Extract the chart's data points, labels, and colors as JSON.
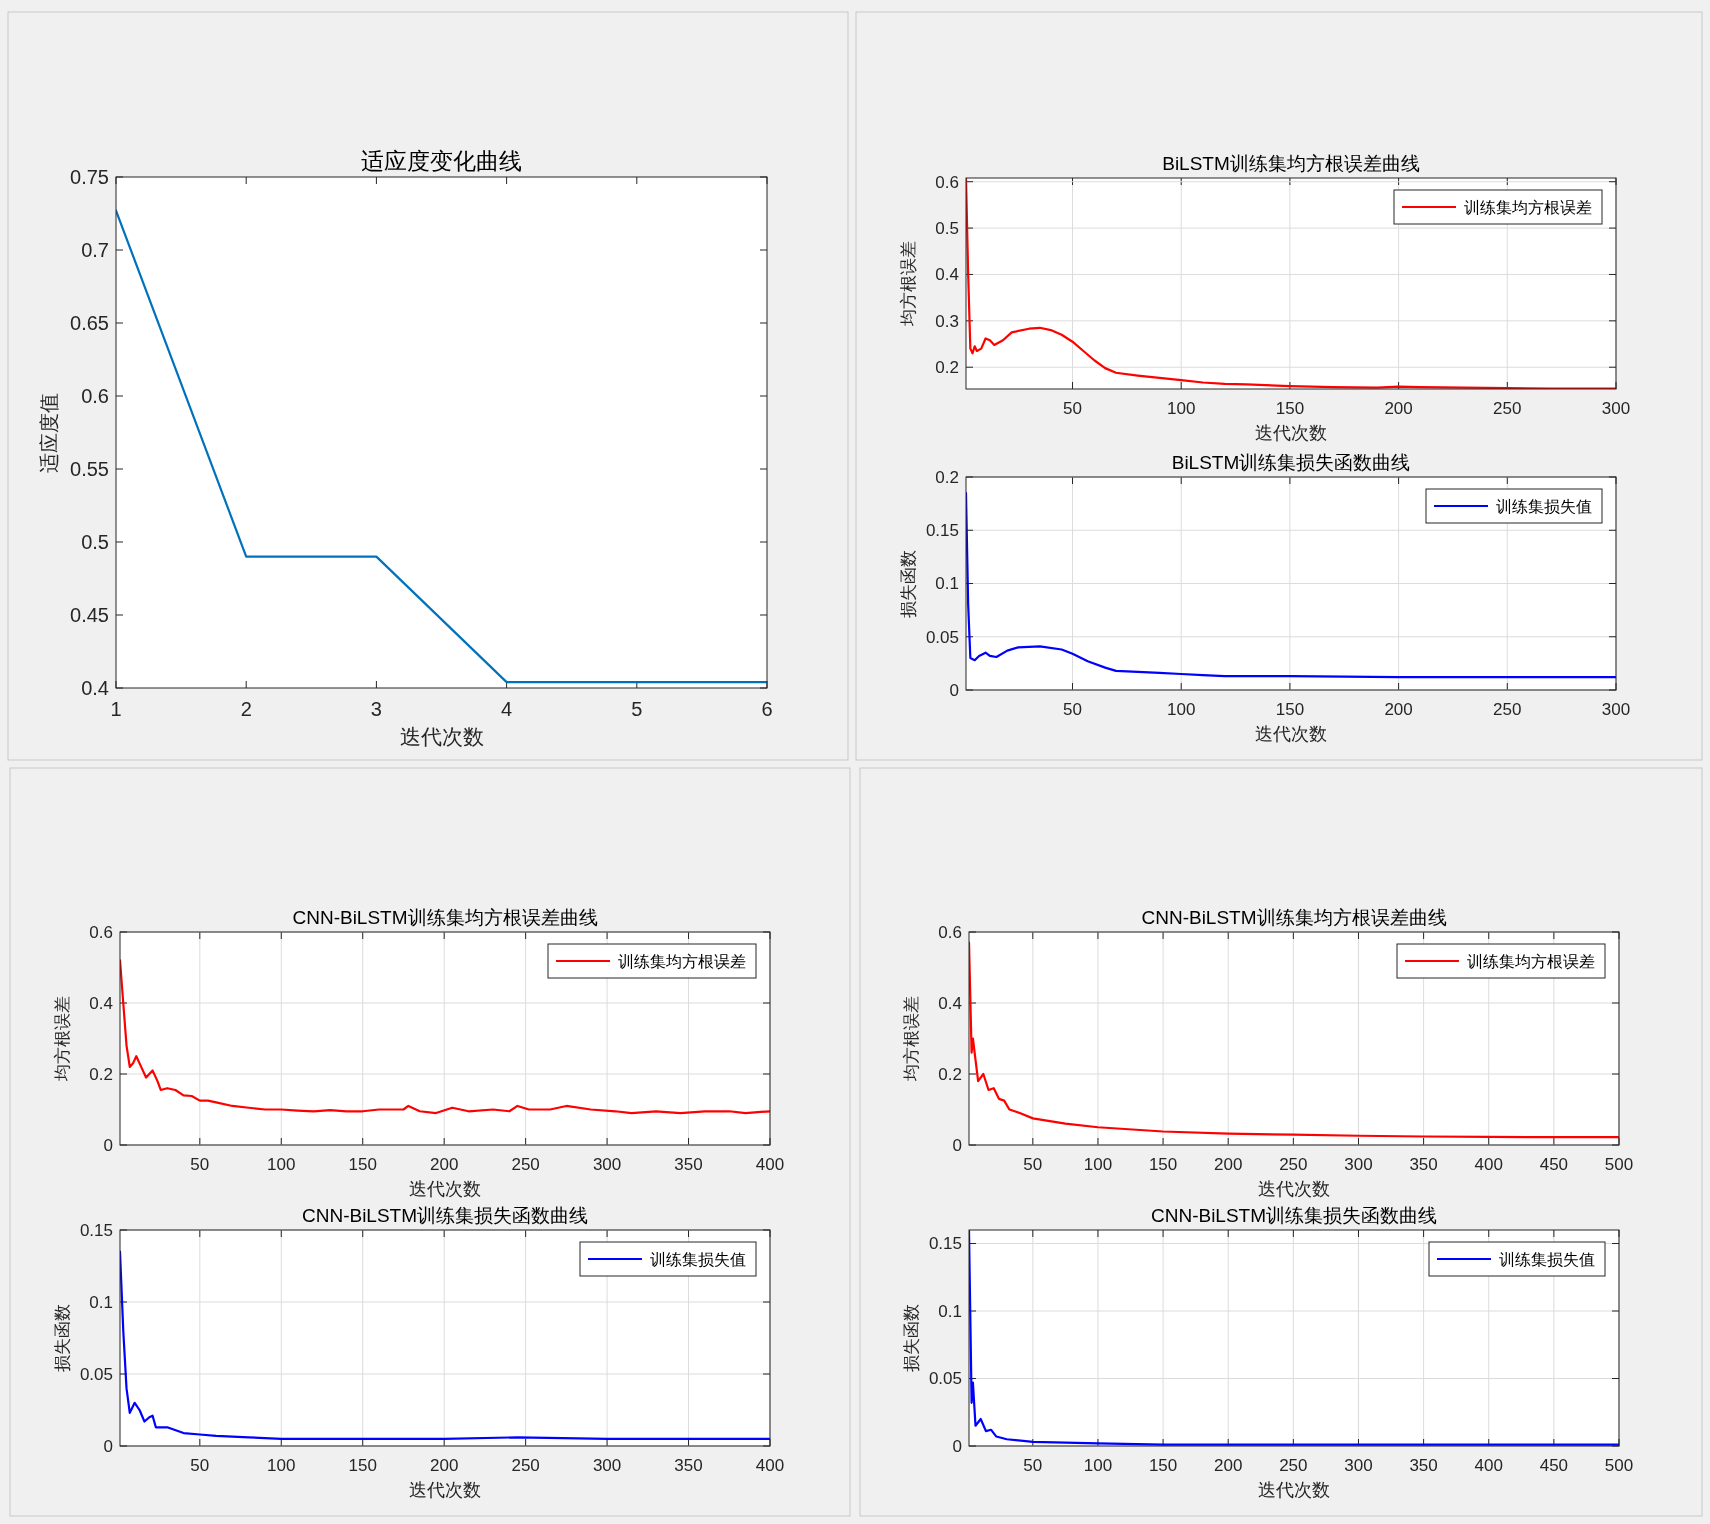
{
  "chart_data": [
    {
      "type": "line",
      "title": "适应度变化曲线",
      "xlabel": "迭代次数",
      "ylabel": "适应度值",
      "xlim": [
        1,
        6
      ],
      "xticks": [
        1,
        2,
        3,
        4,
        5,
        6
      ],
      "ylim": [
        0.4,
        0.75
      ],
      "yticks": [
        0.4,
        0.45,
        0.5,
        0.55,
        0.6,
        0.65,
        0.7,
        0.75
      ],
      "grid": false,
      "series": [
        {
          "color": "#0072bd",
          "x": [
            1,
            2,
            3,
            4,
            5,
            6
          ],
          "values": [
            0.727,
            0.49,
            0.49,
            0.404,
            0.404,
            0.404
          ]
        }
      ]
    },
    {
      "type": "line",
      "title": "BiLSTM训练集均方根误差曲线",
      "xlabel": "迭代次数",
      "ylabel": "均方根误差",
      "xlim": [
        1,
        300
      ],
      "xticks": [
        50,
        100,
        150,
        200,
        250,
        300
      ],
      "ylim": [
        0.153,
        0.608
      ],
      "yticks": [
        0.2,
        0.3,
        0.4,
        0.5,
        0.6
      ],
      "grid": true,
      "legend": "top right",
      "series": [
        {
          "name": "训练集均方根误差",
          "color": "#ff0000",
          "x": [
            1,
            2,
            3,
            4,
            5,
            6,
            8,
            10,
            12,
            14,
            18,
            22,
            30,
            35,
            40,
            45,
            50,
            55,
            60,
            65,
            70,
            80,
            90,
            100,
            110,
            120,
            130,
            150,
            170,
            190,
            200,
            210,
            230,
            250,
            270,
            300
          ],
          "values": [
            0.608,
            0.4,
            0.24,
            0.23,
            0.245,
            0.235,
            0.24,
            0.262,
            0.258,
            0.248,
            0.258,
            0.275,
            0.283,
            0.285,
            0.28,
            0.27,
            0.255,
            0.235,
            0.215,
            0.198,
            0.188,
            0.182,
            0.177,
            0.172,
            0.167,
            0.164,
            0.163,
            0.159,
            0.157,
            0.156,
            0.158,
            0.157,
            0.156,
            0.155,
            0.154,
            0.154
          ]
        }
      ]
    },
    {
      "type": "line",
      "title": "BiLSTM训练集损失函数曲线",
      "xlabel": "迭代次数",
      "ylabel": "损失函数",
      "xlim": [
        1,
        300
      ],
      "xticks": [
        50,
        100,
        150,
        200,
        250,
        300
      ],
      "ylim": [
        0,
        0.2
      ],
      "yticks": [
        0,
        0.05,
        0.1,
        0.15,
        0.2
      ],
      "grid": true,
      "legend": "top right",
      "series": [
        {
          "name": "训练集损失值",
          "color": "#0000ff",
          "x": [
            1,
            2,
            3,
            5,
            7,
            10,
            12,
            15,
            20,
            25,
            35,
            45,
            50,
            57,
            65,
            70,
            80,
            90,
            100,
            110,
            120,
            150,
            200,
            250,
            300
          ],
          "values": [
            0.185,
            0.08,
            0.03,
            0.028,
            0.032,
            0.035,
            0.032,
            0.031,
            0.037,
            0.04,
            0.041,
            0.038,
            0.034,
            0.027,
            0.021,
            0.018,
            0.017,
            0.016,
            0.015,
            0.014,
            0.013,
            0.013,
            0.012,
            0.012,
            0.012
          ]
        }
      ]
    },
    {
      "type": "line",
      "title": "CNN-BiLSTM训练集均方根误差曲线",
      "xlabel": "迭代次数",
      "ylabel": "均方根误差",
      "xlim": [
        1,
        400
      ],
      "xticks": [
        50,
        100,
        150,
        200,
        250,
        300,
        350,
        400
      ],
      "ylim": [
        0,
        0.6
      ],
      "yticks": [
        0,
        0.2,
        0.4,
        0.6
      ],
      "grid": true,
      "legend": "top right",
      "series": [
        {
          "name": "训练集均方根误差",
          "color": "#ff0000",
          "x": [
            1,
            3,
            5,
            7,
            9,
            11,
            14,
            17,
            19,
            21,
            24,
            26,
            30,
            35,
            40,
            45,
            50,
            55,
            60,
            70,
            80,
            90,
            100,
            110,
            120,
            130,
            140,
            150,
            160,
            175,
            178,
            185,
            195,
            205,
            215,
            230,
            240,
            245,
            252,
            265,
            275,
            290,
            305,
            315,
            330,
            345,
            360,
            375,
            385,
            400
          ],
          "values": [
            0.52,
            0.4,
            0.28,
            0.22,
            0.23,
            0.25,
            0.22,
            0.19,
            0.2,
            0.21,
            0.18,
            0.155,
            0.16,
            0.155,
            0.14,
            0.138,
            0.125,
            0.125,
            0.12,
            0.11,
            0.105,
            0.1,
            0.1,
            0.097,
            0.095,
            0.098,
            0.095,
            0.095,
            0.1,
            0.1,
            0.11,
            0.095,
            0.09,
            0.105,
            0.095,
            0.1,
            0.095,
            0.11,
            0.1,
            0.1,
            0.11,
            0.1,
            0.095,
            0.09,
            0.095,
            0.09,
            0.095,
            0.095,
            0.09,
            0.095
          ]
        }
      ]
    },
    {
      "type": "line",
      "title": "CNN-BiLSTM训练集损失函数曲线",
      "xlabel": "迭代次数",
      "ylabel": "损失函数",
      "xlim": [
        1,
        400
      ],
      "xticks": [
        50,
        100,
        150,
        200,
        250,
        300,
        350,
        400
      ],
      "ylim": [
        0,
        0.15
      ],
      "yticks": [
        0,
        0.05,
        0.1,
        0.15
      ],
      "grid": true,
      "legend": "top right",
      "series": [
        {
          "name": "训练集损失值",
          "color": "#0000ff",
          "x": [
            1,
            3,
            5,
            7,
            10,
            13,
            16,
            19,
            21,
            23,
            30,
            40,
            50,
            60,
            80,
            100,
            150,
            200,
            245,
            300,
            400
          ],
          "values": [
            0.135,
            0.08,
            0.04,
            0.023,
            0.03,
            0.025,
            0.017,
            0.02,
            0.021,
            0.013,
            0.013,
            0.009,
            0.008,
            0.007,
            0.006,
            0.005,
            0.005,
            0.005,
            0.006,
            0.005,
            0.005
          ]
        }
      ]
    },
    {
      "type": "line",
      "title": "CNN-BiLSTM训练集均方根误差曲线",
      "xlabel": "迭代次数",
      "ylabel": "均方根误差",
      "xlim": [
        1,
        500
      ],
      "xticks": [
        50,
        100,
        150,
        200,
        250,
        300,
        350,
        400,
        450,
        500
      ],
      "ylim": [
        0,
        0.6
      ],
      "yticks": [
        0,
        0.2,
        0.4,
        0.6
      ],
      "grid": true,
      "legend": "top right",
      "series": [
        {
          "name": "训练集均方根误差",
          "color": "#ff0000",
          "x": [
            1,
            3,
            4,
            6,
            8,
            12,
            16,
            20,
            24,
            28,
            32,
            40,
            50,
            75,
            100,
            150,
            200,
            250,
            300,
            350,
            400,
            450,
            500
          ],
          "values": [
            0.57,
            0.26,
            0.3,
            0.24,
            0.18,
            0.2,
            0.155,
            0.16,
            0.13,
            0.125,
            0.1,
            0.09,
            0.075,
            0.06,
            0.05,
            0.038,
            0.032,
            0.029,
            0.026,
            0.024,
            0.023,
            0.022,
            0.022
          ]
        }
      ]
    },
    {
      "type": "line",
      "title": "CNN-BiLSTM训练集损失函数曲线",
      "xlabel": "迭代次数",
      "ylabel": "损失函数",
      "xlim": [
        1,
        500
      ],
      "xticks": [
        50,
        100,
        150,
        200,
        250,
        300,
        350,
        400,
        450,
        500
      ],
      "ylim": [
        0,
        0.16
      ],
      "yticks": [
        0,
        0.05,
        0.1,
        0.15
      ],
      "grid": true,
      "legend": "top right",
      "series": [
        {
          "name": "训练集损失值",
          "color": "#0000ff",
          "x": [
            1,
            3,
            4,
            6,
            10,
            14,
            18,
            22,
            30,
            50,
            100,
            150,
            200,
            300,
            500
          ],
          "values": [
            0.16,
            0.032,
            0.047,
            0.015,
            0.02,
            0.011,
            0.012,
            0.007,
            0.005,
            0.003,
            0.002,
            0.001,
            0.001,
            0.001,
            0.001
          ]
        }
      ]
    }
  ]
}
